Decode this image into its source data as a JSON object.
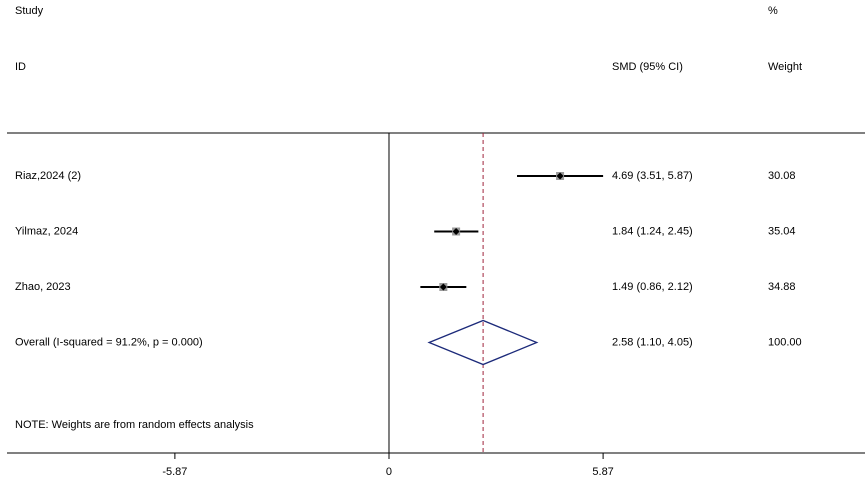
{
  "chart_data": {
    "type": "forest",
    "header": {
      "study": "Study",
      "id": "ID",
      "percent": "%",
      "weight": "Weight",
      "effect": "SMD (95% CI)"
    },
    "studies": [
      {
        "name": "Riaz,2024 (2)",
        "smd": 4.69,
        "ci": [
          3.51,
          5.87
        ],
        "label": "4.69 (3.51, 5.87)",
        "weight": 30.08
      },
      {
        "name": "Yilmaz, 2024",
        "smd": 1.84,
        "ci": [
          1.24,
          2.45
        ],
        "label": "1.84 (1.24, 2.45)",
        "weight": 35.04
      },
      {
        "name": "Zhao, 2023",
        "smd": 1.49,
        "ci": [
          0.86,
          2.12
        ],
        "label": "1.49 (0.86, 2.12)",
        "weight": 34.88
      }
    ],
    "overall": {
      "name": "Overall  (I-squared = 91.2%, p = 0.000)",
      "smd": 2.58,
      "ci": [
        1.1,
        4.05
      ],
      "label": "2.58 (1.10, 4.05)",
      "weight": {
        "value": 100,
        "label": "100.00"
      }
    },
    "note": "NOTE: Weights are from random effects analysis",
    "xlim": [
      -10.5,
      13.05
    ],
    "xticks": [
      -5.87,
      0,
      5.87
    ]
  }
}
